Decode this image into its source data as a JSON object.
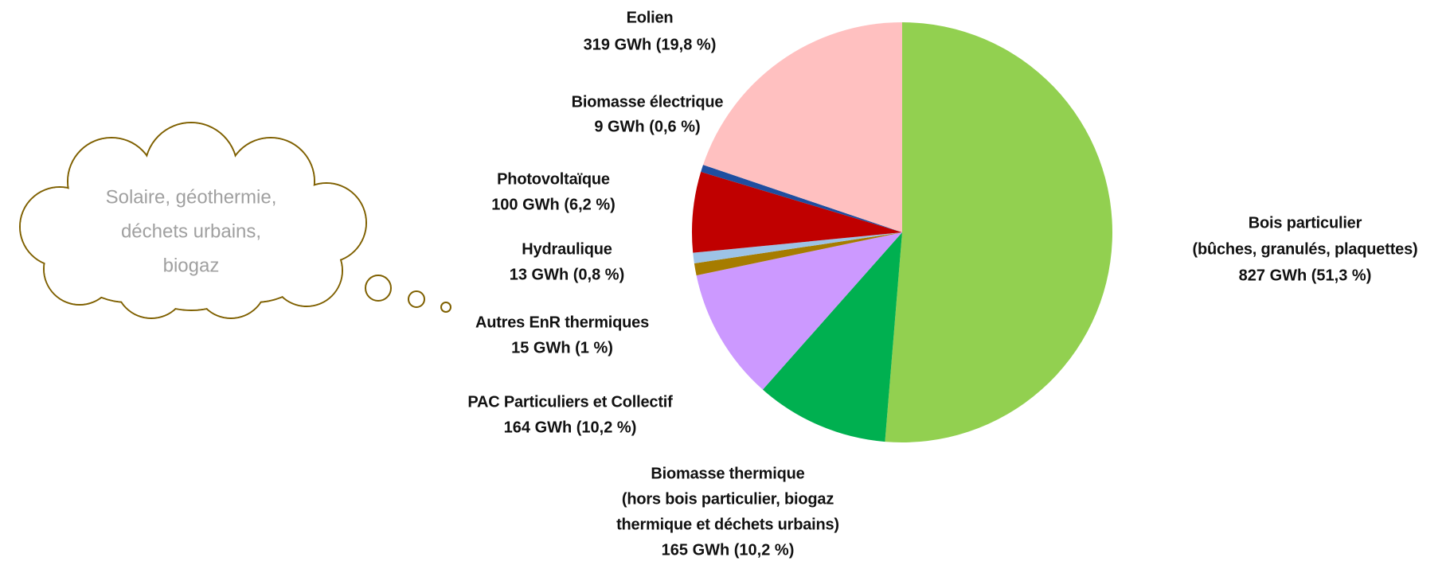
{
  "chart_data": {
    "type": "pie",
    "categories": [
      [
        "Bois particulier",
        "(bûches, granulés, plaquettes)"
      ],
      [
        "Biomasse thermique",
        "(hors bois particulier, biogaz",
        "thermique et déchets urbains)"
      ],
      [
        "PAC Particuliers et Collectif"
      ],
      [
        "Autres EnR thermiques"
      ],
      [
        "Hydraulique"
      ],
      [
        "Photovoltaïque"
      ],
      [
        "Biomasse électrique"
      ],
      [
        "Eolien"
      ]
    ],
    "values": [
      827,
      165,
      164,
      15,
      13,
      100,
      9,
      319
    ],
    "value_labels": [
      "827 GWh (51,3 %)",
      "165 GWh (10,2 %)",
      "164 GWh (10,2 %)",
      "15 GWh (1 %)",
      "13 GWh (0,8 %)",
      "100 GWh (6,2 %)",
      "9 GWh (0,6 %)",
      "319 GWh (19,8 %)"
    ],
    "colors": [
      "#92d050",
      "#00b050",
      "#cc99ff",
      "#a67c00",
      "#9dc3e6",
      "#c00000",
      "#1f4ea0",
      "#ffc0c0"
    ],
    "annotation": [
      "Solaire, géothermie,",
      "déchets urbains,",
      "biogaz"
    ]
  }
}
